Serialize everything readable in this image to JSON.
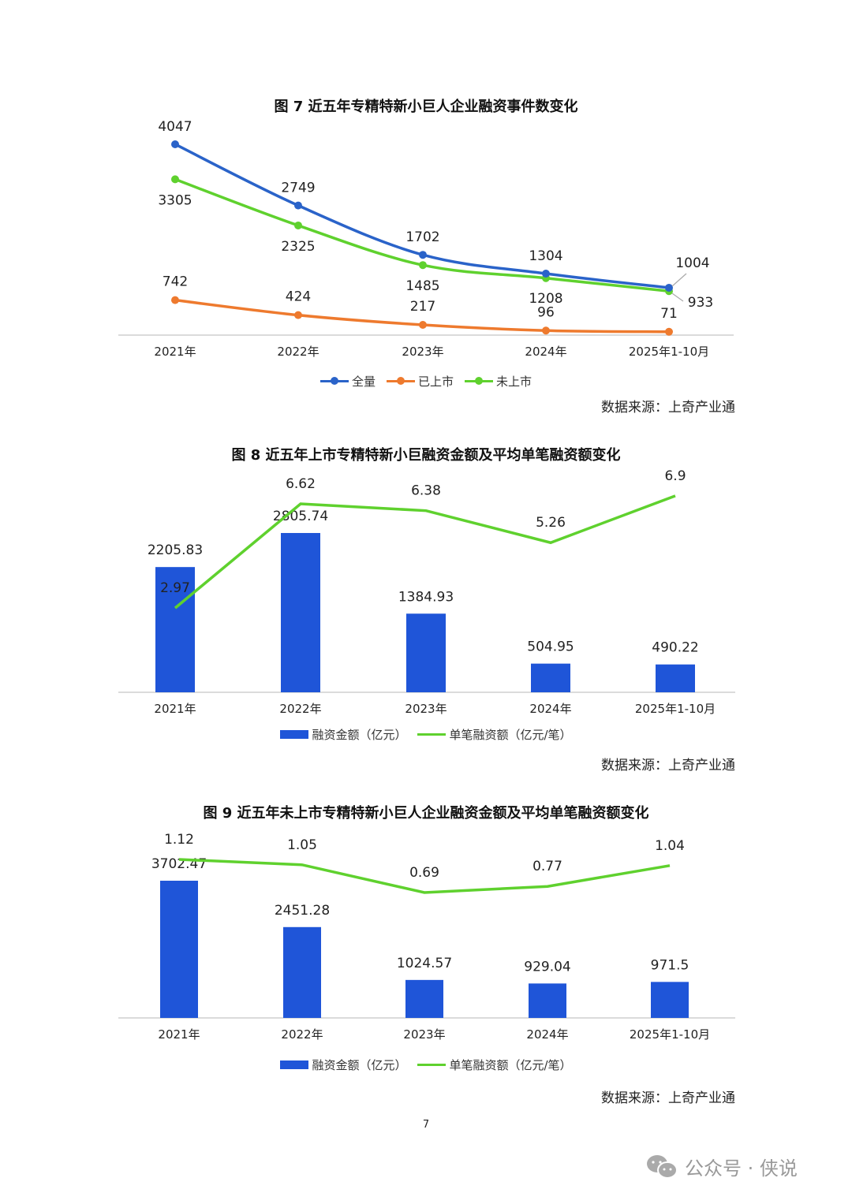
{
  "colors": {
    "blue": "#2a63c9",
    "orange": "#ee7a2e",
    "green": "#5fd12e",
    "bar": "#1f55d8",
    "axis": "#cfcfcf"
  },
  "chart_data": [
    {
      "type": "line",
      "title": "图 7  近五年专精特新小巨人企业融资事件数变化",
      "categories": [
        "2021年",
        "2022年",
        "2023年",
        "2024年",
        "2025年1-10月"
      ],
      "series": [
        {
          "name": "全量",
          "values": [
            4047,
            2749,
            1702,
            1304,
            1004
          ]
        },
        {
          "name": "已上市",
          "values": [
            742,
            424,
            217,
            96,
            71
          ]
        },
        {
          "name": "未上市",
          "values": [
            3305,
            2325,
            1485,
            1208,
            933
          ]
        }
      ],
      "source": "数据来源：上奇产业通"
    },
    {
      "type": "bar",
      "title": "图 8  近五年上市专精特新小巨融资金额及平均单笔融资额变化",
      "categories": [
        "2021年",
        "2022年",
        "2023年",
        "2024年",
        "2025年1-10月"
      ],
      "series": [
        {
          "name": "融资金额（亿元）",
          "type": "bar",
          "values": [
            2205.83,
            2805.74,
            1384.93,
            504.95,
            490.22
          ]
        },
        {
          "name": "单笔融资额（亿元/笔）",
          "type": "line",
          "values": [
            2.97,
            6.62,
            6.38,
            5.26,
            6.9
          ]
        }
      ],
      "source": "数据来源：上奇产业通"
    },
    {
      "type": "bar",
      "title": "图 9  近五年未上市专精特新小巨人企业融资金额及平均单笔融资额变化",
      "categories": [
        "2021年",
        "2022年",
        "2023年",
        "2024年",
        "2025年1-10月"
      ],
      "series": [
        {
          "name": "融资金额（亿元）",
          "type": "bar",
          "values": [
            3702.47,
            2451.28,
            1024.57,
            929.04,
            971.5
          ]
        },
        {
          "name": "单笔融资额（亿元/笔）",
          "type": "line",
          "values": [
            1.12,
            1.05,
            0.69,
            0.77,
            1.04
          ]
        }
      ],
      "source": "数据来源：上奇产业通"
    }
  ],
  "page_number": "7",
  "watermark": "公众号 · 侠说"
}
